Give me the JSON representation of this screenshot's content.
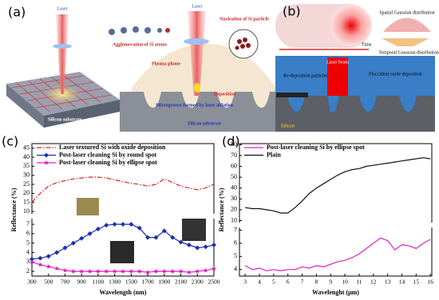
{
  "figure": {
    "panel_a": {
      "label": "(a)",
      "laser_left": "Laser",
      "agglomeration": "Agglomeration of Si atoms",
      "substrate_left": "Silicon substrate",
      "laser_right": "Laser",
      "nucleation": "Nucleation of Si particle",
      "plume": "Plasma plume",
      "deposition": "Deposition",
      "microgroove": "Microgroove formed by laser ablation",
      "substrate_right": "Silicon substrate"
    },
    "panel_b": {
      "label": "(b)",
      "spatial": "Spatial Gaussian distribution",
      "time": "Time",
      "temporal": "Temporal Gaussian distribution",
      "beam": "Laser beam",
      "redeposition": "Re-deposition particles",
      "flocculent": "Flocculent oxide deposition",
      "silicon": "Silicon"
    }
  },
  "chart_data": [
    {
      "type": "line",
      "panel_label": "(c)",
      "x_label": "Wavelength (nm)",
      "y_label": "Reflectance (%)",
      "x": [
        300,
        400,
        500,
        600,
        700,
        800,
        900,
        1000,
        1100,
        1200,
        1300,
        1400,
        1500,
        1600,
        1700,
        1800,
        1900,
        2000,
        2100,
        2200,
        2300,
        2400,
        2500
      ],
      "xlim": [
        300,
        2500
      ],
      "xticks": [
        300,
        500,
        700,
        900,
        1100,
        1300,
        1500,
        1700,
        1900,
        2100,
        2300,
        2500
      ],
      "y_segments": [
        {
          "ylim": [
            1.5,
            7.6
          ],
          "yticks": [
            2,
            3,
            4,
            5,
            6,
            7
          ]
        },
        {
          "ylim": [
            8.7,
            47.5
          ],
          "yticks": [
            10,
            15,
            20,
            25,
            30,
            35,
            40,
            45
          ]
        }
      ],
      "series": [
        {
          "name": "Laser textured Si with oxide deposition",
          "color": "#d22",
          "line_style": "dashdot",
          "marker": "none",
          "values": [
            15,
            20,
            24,
            26,
            27,
            28,
            28.5,
            29,
            29,
            28.5,
            27.5,
            26.5,
            25.5,
            25,
            24,
            25,
            28,
            26,
            24,
            23,
            22,
            23,
            25
          ]
        },
        {
          "name": "Post-laser cleaning Si by round spot",
          "color": "#1a2fb0",
          "line_style": "solid",
          "marker": "diamond",
          "values": [
            3.3,
            3.4,
            3.6,
            4.0,
            4.5,
            5.0,
            5.5,
            6.0,
            6.5,
            6.9,
            7.0,
            7.0,
            7.0,
            6.6,
            5.6,
            5.6,
            6.3,
            5.6,
            5.1,
            4.8,
            4.5,
            4.6,
            4.8
          ]
        },
        {
          "name": "Post-laser cleaning Si by ellipse spot",
          "color": "#e020c0",
          "line_style": "solid",
          "marker": "star",
          "values": [
            3.0,
            2.7,
            2.5,
            2.3,
            2.1,
            2.0,
            2.0,
            2.0,
            2.0,
            2.0,
            2.0,
            2.0,
            2.0,
            2.0,
            1.9,
            2.0,
            2.0,
            2.0,
            2.0,
            1.9,
            2.0,
            2.1,
            2.3
          ]
        }
      ]
    },
    {
      "type": "line",
      "panel_label": "(d)",
      "x_label": "Wavelenght (μm)",
      "y_label": "Reflectance (%)",
      "x": [
        3,
        3.5,
        4,
        4.5,
        5,
        5.5,
        6,
        6.5,
        7,
        7.5,
        8,
        8.5,
        9,
        9.5,
        10,
        10.5,
        11,
        11.5,
        12,
        12.5,
        13,
        13.5,
        14,
        14.5,
        15,
        15.5,
        16
      ],
      "xlim": [
        2.6,
        16.1
      ],
      "xticks": [
        3,
        4,
        5,
        6,
        7,
        8,
        9,
        10,
        11,
        12,
        13,
        14,
        15,
        16
      ],
      "y_segments": [
        {
          "ylim": [
            3.5,
            7.2
          ],
          "yticks": [
            4,
            5,
            6,
            7
          ]
        },
        {
          "ylim": [
            8,
            81
          ],
          "yticks": [
            10,
            20,
            30,
            40,
            50,
            60,
            70,
            80
          ]
        }
      ],
      "series": [
        {
          "name": "Post-laser cleaning Si by ellipse spot",
          "color": "#e020c0",
          "line_style": "solid",
          "marker": "none",
          "values": [
            4.3,
            4.0,
            4.1,
            3.9,
            4.0,
            3.9,
            4.0,
            4.0,
            4.2,
            4.1,
            4.3,
            4.2,
            4.4,
            4.6,
            4.7,
            4.9,
            5.2,
            5.6,
            6.0,
            6.4,
            6.2,
            5.5,
            5.9,
            5.8,
            5.6,
            6.0,
            6.3
          ]
        },
        {
          "name": "Plain",
          "color": "#111",
          "line_style": "solid",
          "marker": "none",
          "values": [
            22,
            21,
            21,
            20,
            19,
            17,
            17,
            22,
            28,
            35,
            40,
            44,
            48,
            52,
            55,
            57,
            58,
            60,
            61,
            62,
            63,
            64,
            65,
            66,
            67,
            68,
            67
          ]
        }
      ]
    }
  ]
}
